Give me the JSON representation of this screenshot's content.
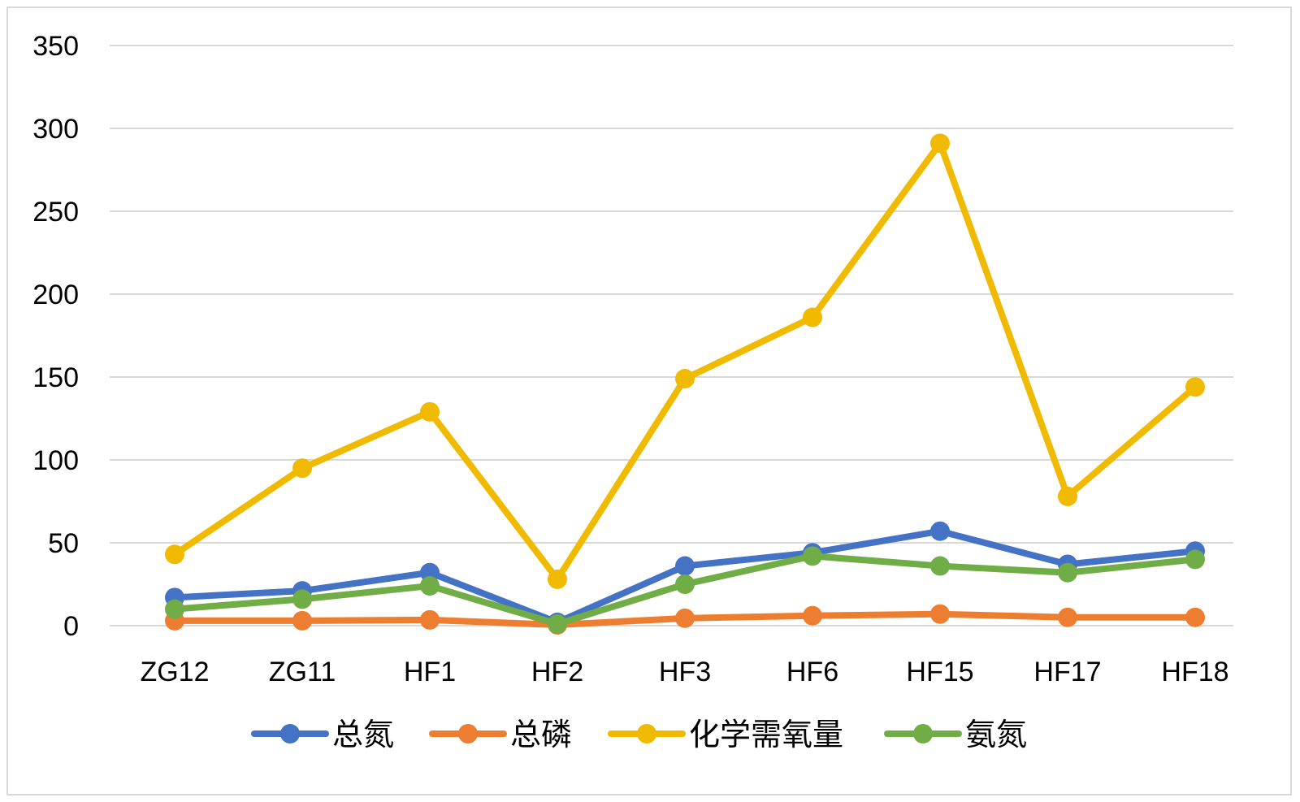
{
  "chart_data": {
    "type": "line",
    "title": "",
    "xlabel": "",
    "ylabel": "",
    "categories": [
      "ZG12",
      "ZG11",
      "HF1",
      "HF2",
      "HF3",
      "HF6",
      "HF15",
      "HF17",
      "HF18"
    ],
    "ylim": [
      0,
      350
    ],
    "yticks": [
      0,
      50,
      100,
      150,
      200,
      250,
      300,
      350
    ],
    "grid": true,
    "legend_position": "bottom",
    "series": [
      {
        "name": "总氮",
        "color": "#4472C4",
        "values": [
          17,
          21,
          32,
          2,
          36,
          44,
          57,
          37,
          45
        ]
      },
      {
        "name": "总磷",
        "color": "#ED7D31",
        "values": [
          3,
          3,
          3.5,
          0.5,
          4.5,
          6,
          7,
          5,
          5
        ]
      },
      {
        "name": "化学需氧量",
        "color": "#F0BA00",
        "values": [
          43,
          95,
          129,
          28,
          149,
          186,
          291,
          78,
          144
        ]
      },
      {
        "name": "氨氮",
        "color": "#70AD47",
        "values": [
          10,
          16,
          24,
          1,
          25,
          42,
          36,
          32,
          40
        ]
      }
    ]
  }
}
